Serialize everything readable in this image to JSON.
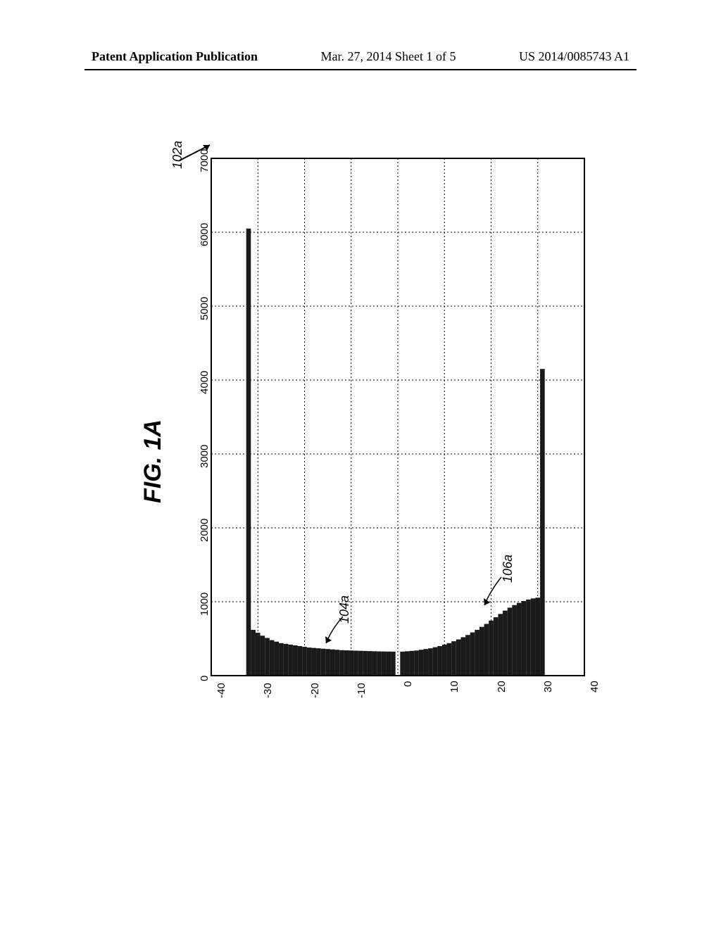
{
  "header": {
    "left": "Patent Application Publication",
    "mid": "Mar. 27, 2014  Sheet 1 of 5",
    "right": "US 2014/0085743 A1"
  },
  "figure": {
    "label": "FIG. 1A",
    "ref_main": "102a",
    "annotations": {
      "left_region": "104a",
      "right_region": "106a"
    },
    "chart": {
      "type": "bar",
      "orientation": "rotated-90",
      "xlim": [
        -40,
        40
      ],
      "ylim": [
        0,
        7000
      ],
      "xticks": [
        -40,
        -30,
        -20,
        -10,
        0,
        10,
        20,
        30,
        40
      ],
      "yticks": [
        0,
        1000,
        2000,
        3000,
        4000,
        5000,
        6000,
        7000
      ],
      "grid_color": "#000000",
      "grid_dash": "2,3",
      "border_color": "#000000",
      "background_color": "#ffffff",
      "bar_color": "#1a1a1a",
      "tick_fontsize": 15,
      "data": [
        {
          "x": -32,
          "y": 6050
        },
        {
          "x": -31,
          "y": 620
        },
        {
          "x": -30,
          "y": 580
        },
        {
          "x": -29,
          "y": 540
        },
        {
          "x": -28,
          "y": 510
        },
        {
          "x": -27,
          "y": 480
        },
        {
          "x": -26,
          "y": 460
        },
        {
          "x": -25,
          "y": 440
        },
        {
          "x": -24,
          "y": 430
        },
        {
          "x": -23,
          "y": 420
        },
        {
          "x": -22,
          "y": 410
        },
        {
          "x": -21,
          "y": 400
        },
        {
          "x": -20,
          "y": 390
        },
        {
          "x": -19,
          "y": 380
        },
        {
          "x": -18,
          "y": 375
        },
        {
          "x": -17,
          "y": 370
        },
        {
          "x": -16,
          "y": 365
        },
        {
          "x": -15,
          "y": 360
        },
        {
          "x": -14,
          "y": 355
        },
        {
          "x": -13,
          "y": 350
        },
        {
          "x": -12,
          "y": 345
        },
        {
          "x": -11,
          "y": 342
        },
        {
          "x": -10,
          "y": 340
        },
        {
          "x": -9,
          "y": 338
        },
        {
          "x": -8,
          "y": 336
        },
        {
          "x": -7,
          "y": 334
        },
        {
          "x": -6,
          "y": 332
        },
        {
          "x": -5,
          "y": 330
        },
        {
          "x": -4,
          "y": 328
        },
        {
          "x": -3,
          "y": 327
        },
        {
          "x": -2,
          "y": 326
        },
        {
          "x": -1,
          "y": 325
        },
        {
          "x": 1,
          "y": 325
        },
        {
          "x": 2,
          "y": 330
        },
        {
          "x": 3,
          "y": 335
        },
        {
          "x": 4,
          "y": 340
        },
        {
          "x": 5,
          "y": 350
        },
        {
          "x": 6,
          "y": 360
        },
        {
          "x": 7,
          "y": 370
        },
        {
          "x": 8,
          "y": 385
        },
        {
          "x": 9,
          "y": 400
        },
        {
          "x": 10,
          "y": 420
        },
        {
          "x": 11,
          "y": 440
        },
        {
          "x": 12,
          "y": 465
        },
        {
          "x": 13,
          "y": 490
        },
        {
          "x": 14,
          "y": 520
        },
        {
          "x": 15,
          "y": 550
        },
        {
          "x": 16,
          "y": 585
        },
        {
          "x": 17,
          "y": 620
        },
        {
          "x": 18,
          "y": 660
        },
        {
          "x": 19,
          "y": 700
        },
        {
          "x": 20,
          "y": 745
        },
        {
          "x": 21,
          "y": 790
        },
        {
          "x": 22,
          "y": 835
        },
        {
          "x": 23,
          "y": 880
        },
        {
          "x": 24,
          "y": 920
        },
        {
          "x": 25,
          "y": 955
        },
        {
          "x": 26,
          "y": 985
        },
        {
          "x": 27,
          "y": 1010
        },
        {
          "x": 28,
          "y": 1030
        },
        {
          "x": 29,
          "y": 1045
        },
        {
          "x": 30,
          "y": 1055
        },
        {
          "x": 31,
          "y": 4150
        }
      ]
    }
  }
}
